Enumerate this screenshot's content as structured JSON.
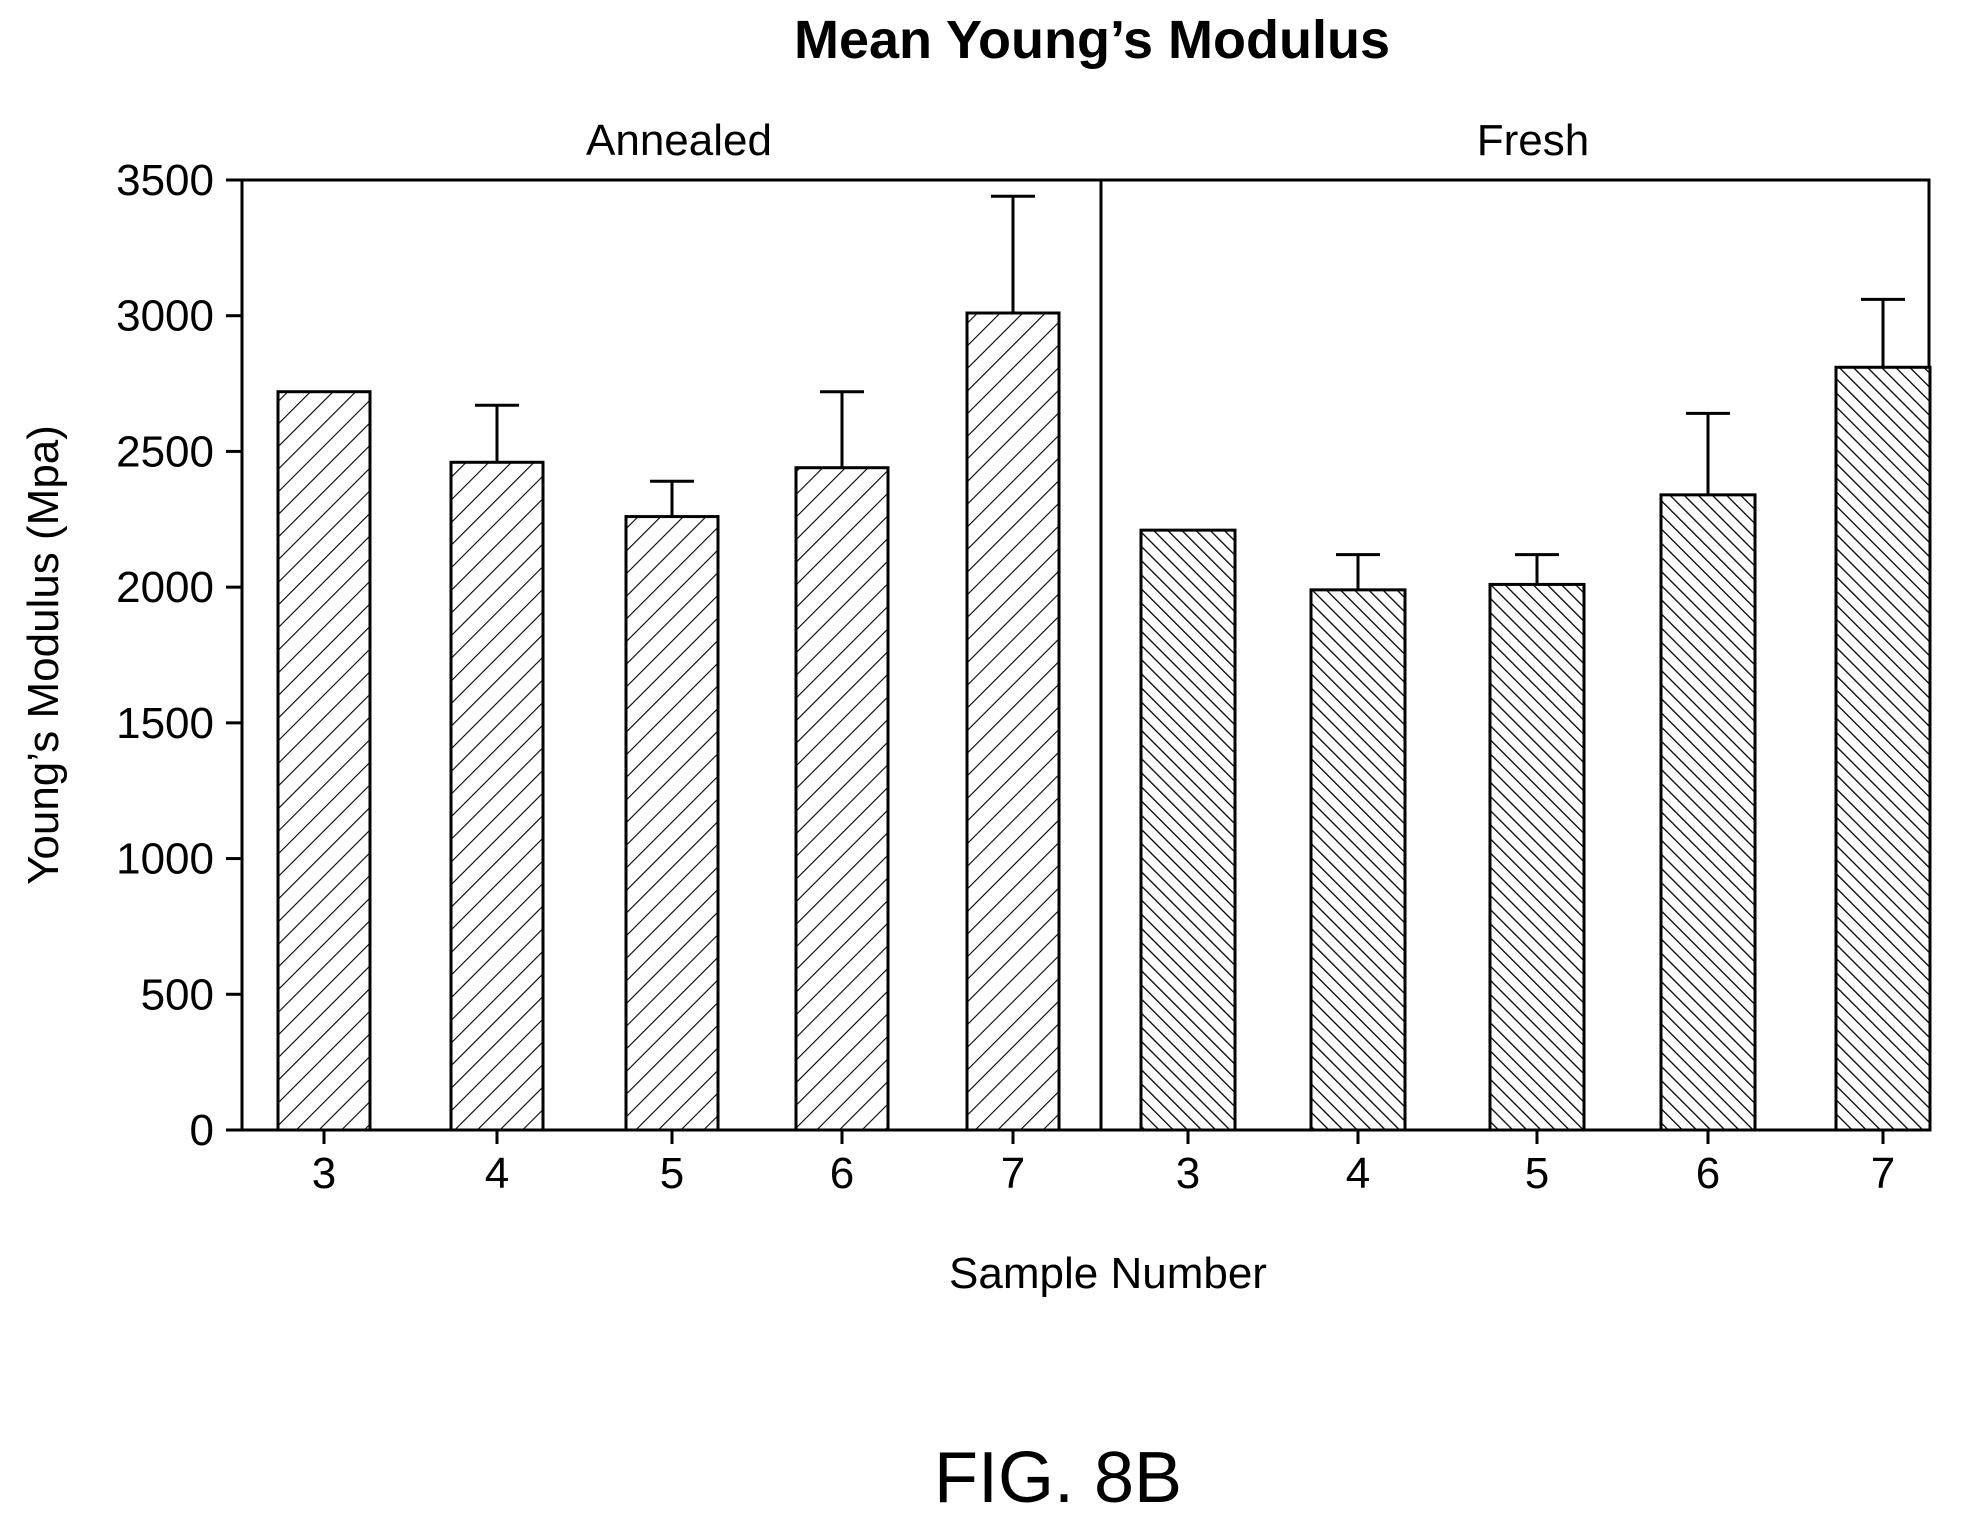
{
  "chart_data": {
    "type": "bar",
    "title": "Mean Young’s Modulus",
    "xlabel": "Sample Number",
    "ylabel": "Young’s Modulus (Mpa)",
    "ylim": [
      0,
      3500
    ],
    "yticks": [
      "0",
      "500",
      "1000",
      "1500",
      "2000",
      "2500",
      "3000",
      "3500"
    ],
    "grid": false,
    "panels": [
      {
        "label": "Annealed",
        "categories": [
          "3",
          "4",
          "5",
          "6",
          "7"
        ],
        "values": [
          2720,
          2460,
          2260,
          2440,
          3010
        ],
        "error_upper": [
          0,
          2670,
          2390,
          2720,
          3440
        ]
      },
      {
        "label": "Fresh",
        "categories": [
          "3",
          "4",
          "5",
          "6",
          "7"
        ],
        "values": [
          2210,
          1990,
          2010,
          2340,
          2810
        ],
        "error_upper": [
          0,
          2120,
          2120,
          2640,
          3060
        ]
      }
    ]
  },
  "figure_label": "FIG. 8B"
}
